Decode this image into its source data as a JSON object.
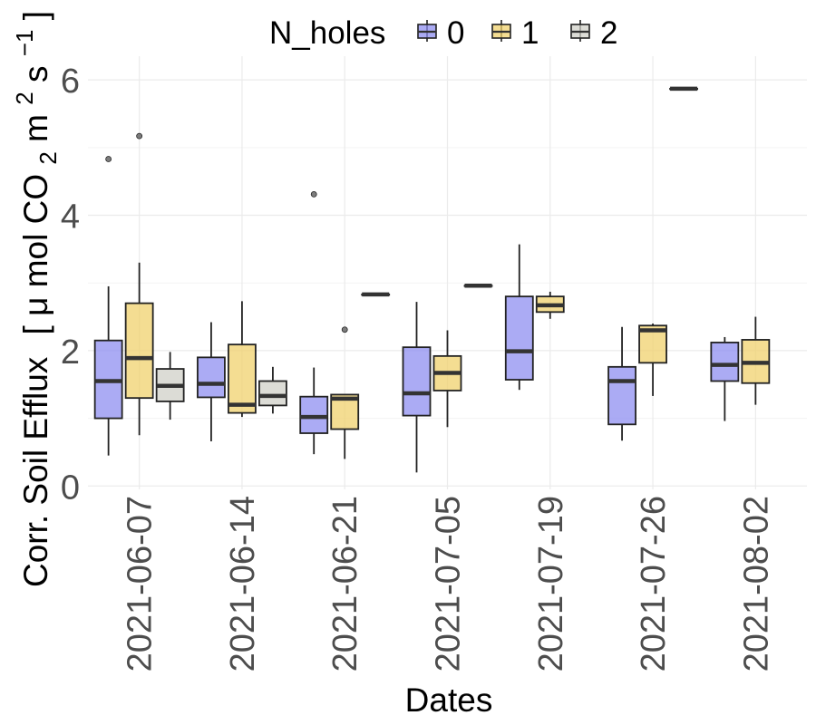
{
  "chart_data": {
    "type": "boxplot",
    "xlabel": "Dates",
    "ylabel": "Corr. Soil Efflux",
    "ylabel_units": {
      "open": "[",
      "mu": "μ",
      "mol": "mol CO",
      "sub2": "2",
      "m": " m",
      "sup2": "2",
      "s": " s",
      "supneg1": " −1",
      "close": "]"
    },
    "categories": [
      "2021-06-07",
      "2021-06-14",
      "2021-06-21",
      "2021-07-05",
      "2021-07-19",
      "2021-07-26",
      "2021-08-02"
    ],
    "yticks": [
      "0",
      "2",
      "4",
      "6"
    ],
    "ylim": [
      -0.05,
      6.35
    ],
    "grid": true,
    "legend": {
      "title": "N_holes",
      "position": "top",
      "labels": [
        "0",
        "1",
        "2"
      ]
    },
    "series": [
      {
        "name": "0",
        "color": "#8a8af0",
        "boxes": [
          {
            "category": "2021-06-07",
            "lo": 0.45,
            "q1": 1.0,
            "median": 1.55,
            "q3": 2.15,
            "hi": 2.95,
            "outliers": [
              4.83
            ]
          },
          {
            "category": "2021-06-14",
            "lo": 0.66,
            "q1": 1.31,
            "median": 1.51,
            "q3": 1.9,
            "hi": 2.42,
            "outliers": []
          },
          {
            "category": "2021-06-21",
            "lo": 0.47,
            "q1": 0.78,
            "median": 1.02,
            "q3": 1.32,
            "hi": 1.75,
            "outliers": [
              4.31
            ]
          },
          {
            "category": "2021-07-05",
            "lo": 0.2,
            "q1": 1.04,
            "median": 1.37,
            "q3": 2.05,
            "hi": 2.72,
            "outliers": []
          },
          {
            "category": "2021-07-19",
            "lo": 1.42,
            "q1": 1.57,
            "median": 1.99,
            "q3": 2.8,
            "hi": 3.57,
            "outliers": []
          },
          {
            "category": "2021-07-26",
            "lo": 0.67,
            "q1": 0.91,
            "median": 1.55,
            "q3": 1.76,
            "hi": 2.35,
            "outliers": []
          },
          {
            "category": "2021-08-02",
            "lo": 0.96,
            "q1": 1.55,
            "median": 1.79,
            "q3": 2.12,
            "hi": 2.2,
            "outliers": []
          }
        ]
      },
      {
        "name": "1",
        "color": "#f0d068",
        "boxes": [
          {
            "category": "2021-06-07",
            "lo": 0.75,
            "q1": 1.3,
            "median": 1.89,
            "q3": 2.7,
            "hi": 3.3,
            "outliers": [
              5.17
            ]
          },
          {
            "category": "2021-06-14",
            "lo": 1.02,
            "q1": 1.08,
            "median": 1.2,
            "q3": 2.09,
            "hi": 2.73,
            "outliers": []
          },
          {
            "category": "2021-06-21",
            "lo": 0.4,
            "q1": 0.84,
            "median": 1.29,
            "q3": 1.35,
            "hi": 1.35,
            "outliers": [
              2.31
            ]
          },
          {
            "category": "2021-07-05",
            "lo": 0.87,
            "q1": 1.41,
            "median": 1.67,
            "q3": 1.92,
            "hi": 2.3,
            "outliers": []
          },
          {
            "category": "2021-07-19",
            "lo": 2.47,
            "q1": 2.57,
            "median": 2.67,
            "q3": 2.8,
            "hi": 2.87,
            "outliers": []
          },
          {
            "category": "2021-07-26",
            "lo": 1.33,
            "q1": 1.82,
            "median": 2.3,
            "q3": 2.37,
            "hi": 2.4,
            "outliers": []
          },
          {
            "category": "2021-08-02",
            "lo": 1.2,
            "q1": 1.52,
            "median": 1.82,
            "q3": 2.16,
            "hi": 2.5,
            "outliers": []
          }
        ]
      },
      {
        "name": "2",
        "color": "#cfcfc6",
        "boxes": [
          {
            "category": "2021-06-07",
            "lo": 0.98,
            "q1": 1.25,
            "median": 1.48,
            "q3": 1.73,
            "hi": 1.98,
            "outliers": []
          },
          {
            "category": "2021-06-14",
            "lo": 1.07,
            "q1": 1.19,
            "median": 1.33,
            "q3": 1.55,
            "hi": 1.76,
            "outliers": []
          },
          {
            "category": "2021-06-21",
            "lo": 2.83,
            "q1": 2.83,
            "median": 2.83,
            "q3": 2.83,
            "hi": 2.83,
            "outliers": []
          },
          {
            "category": "2021-07-05",
            "lo": 2.96,
            "q1": 2.96,
            "median": 2.96,
            "q3": 2.96,
            "hi": 2.96,
            "outliers": []
          },
          {
            "category": "2021-07-26",
            "lo": 5.87,
            "q1": 5.87,
            "median": 5.87,
            "q3": 5.87,
            "hi": 5.87,
            "outliers": []
          }
        ]
      }
    ]
  }
}
